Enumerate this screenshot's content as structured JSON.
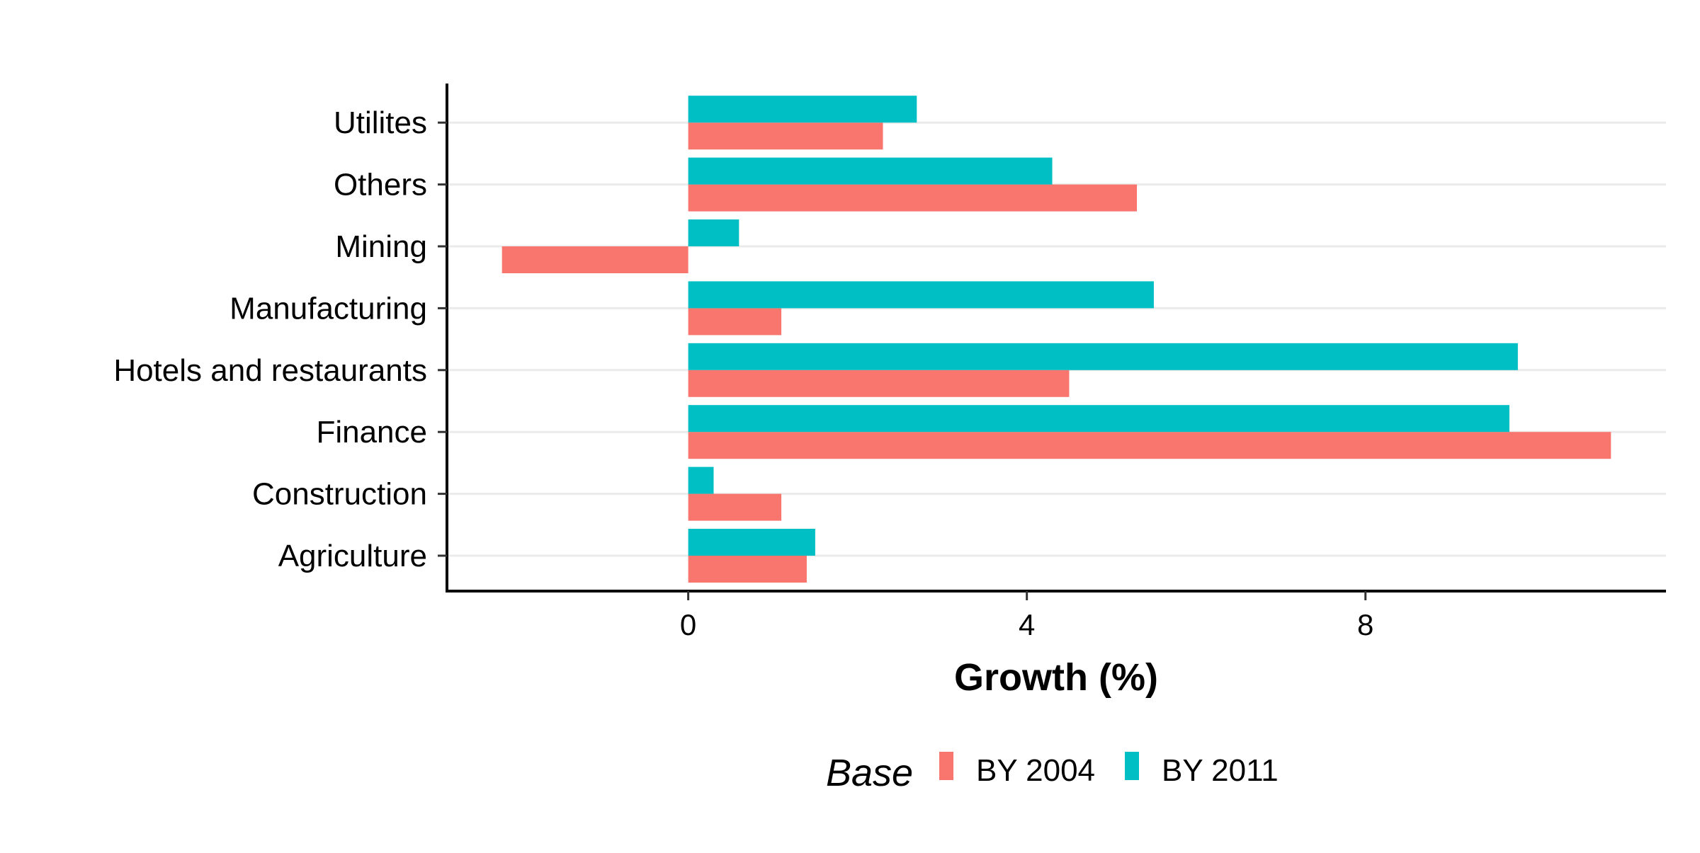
{
  "chart_data": {
    "type": "bar",
    "orientation": "horizontal",
    "categories": [
      "Agriculture",
      "Construction",
      "Finance",
      "Hotels and restaurants",
      "Manufacturing",
      "Mining",
      "Others",
      "Utilites"
    ],
    "series": [
      {
        "name": "BY 2004",
        "color": "#F8766D",
        "values": [
          1.4,
          1.1,
          10.9,
          4.5,
          1.1,
          -2.2,
          5.3,
          2.3
        ]
      },
      {
        "name": "BY 2011",
        "color": "#00BFC4",
        "values": [
          1.5,
          0.3,
          9.7,
          9.8,
          5.5,
          0.6,
          4.3,
          2.7
        ]
      }
    ],
    "xlabel": "Growth (%)",
    "ylabel": "",
    "xlim": [
      -2.85,
      11.55
    ],
    "xticks": [
      0,
      4,
      8
    ],
    "legend": {
      "title": "Base",
      "position": "bottom"
    },
    "grid": {
      "major_y": true,
      "major_x": false
    }
  }
}
